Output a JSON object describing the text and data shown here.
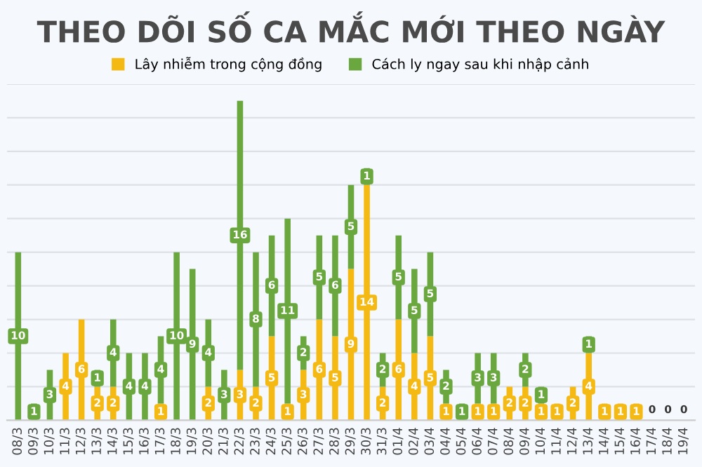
{
  "chart_data": {
    "type": "bar",
    "stacked": true,
    "title": "THEO DÕI SỐ CA MẮC MỚI THEO NGÀY",
    "categories": [
      "08/3",
      "09/3",
      "10/3",
      "11/3",
      "12/3",
      "13/3",
      "14/3",
      "15/3",
      "16/3",
      "17/3",
      "18/3",
      "19/3",
      "20/3",
      "21/3",
      "22/3",
      "23/3",
      "24/3",
      "25/3",
      "26/3",
      "27/3",
      "28/3",
      "29/3",
      "30/3",
      "31/3",
      "01/4",
      "02/4",
      "03/4",
      "04/4",
      "05/4",
      "06/4",
      "07/4",
      "08/4",
      "09/4",
      "10/4",
      "11/4",
      "12/4",
      "13/4",
      "14/4",
      "15/4",
      "16/4",
      "17/4",
      "18/4",
      "19/4"
    ],
    "series": [
      {
        "name": "Lây nhiễm trong cộng đồng",
        "color": "#f5b914",
        "values": [
          null,
          null,
          null,
          4,
          6,
          2,
          2,
          null,
          null,
          1,
          null,
          null,
          2,
          null,
          3,
          2,
          5,
          1,
          3,
          6,
          5,
          9,
          14,
          2,
          6,
          4,
          5,
          1,
          null,
          1,
          1,
          2,
          2,
          1,
          1,
          2,
          4,
          1,
          1,
          1,
          0,
          0,
          0
        ],
        "value_labels": [
          null,
          null,
          null,
          "4",
          "6",
          "2",
          "2",
          null,
          null,
          "1",
          null,
          null,
          "2",
          null,
          "3",
          "2",
          "5",
          "1",
          "3",
          "6",
          "5",
          "9",
          "14",
          "2",
          "6",
          "4",
          "5",
          "1",
          null,
          "1",
          "1",
          "2",
          "2",
          "1",
          "1",
          "2",
          "4",
          "1",
          "1",
          "1",
          "0",
          "0",
          "0"
        ]
      },
      {
        "name": "Cách ly ngay sau khi nhập cảnh",
        "color": "#6aa83f",
        "values": [
          10,
          1,
          3,
          null,
          null,
          1,
          4,
          4,
          4,
          4,
          10,
          9,
          4,
          3,
          16,
          8,
          6,
          11,
          2,
          5,
          6,
          5,
          1,
          2,
          5,
          5,
          5,
          2,
          1,
          3,
          3,
          null,
          2,
          1,
          null,
          null,
          1,
          null,
          null,
          null,
          null,
          null,
          null
        ]
      }
    ],
    "data_labels": true,
    "ylim": [
      0,
      20
    ],
    "yticks": [
      {
        "value": 0,
        "label": null
      },
      {
        "value": 2,
        "label": null
      },
      {
        "value": 4,
        "label": null
      },
      {
        "value": 6,
        "label": null
      },
      {
        "value": 8,
        "label": null
      },
      {
        "value": 10,
        "label": null
      },
      {
        "value": 12,
        "label": null
      },
      {
        "value": 14,
        "label": null
      },
      {
        "value": 16,
        "label": null
      },
      {
        "value": 18,
        "label": null
      },
      {
        "value": 20,
        "label": null
      }
    ],
    "grid": "y",
    "legend": "top",
    "tick_labels": "x"
  }
}
